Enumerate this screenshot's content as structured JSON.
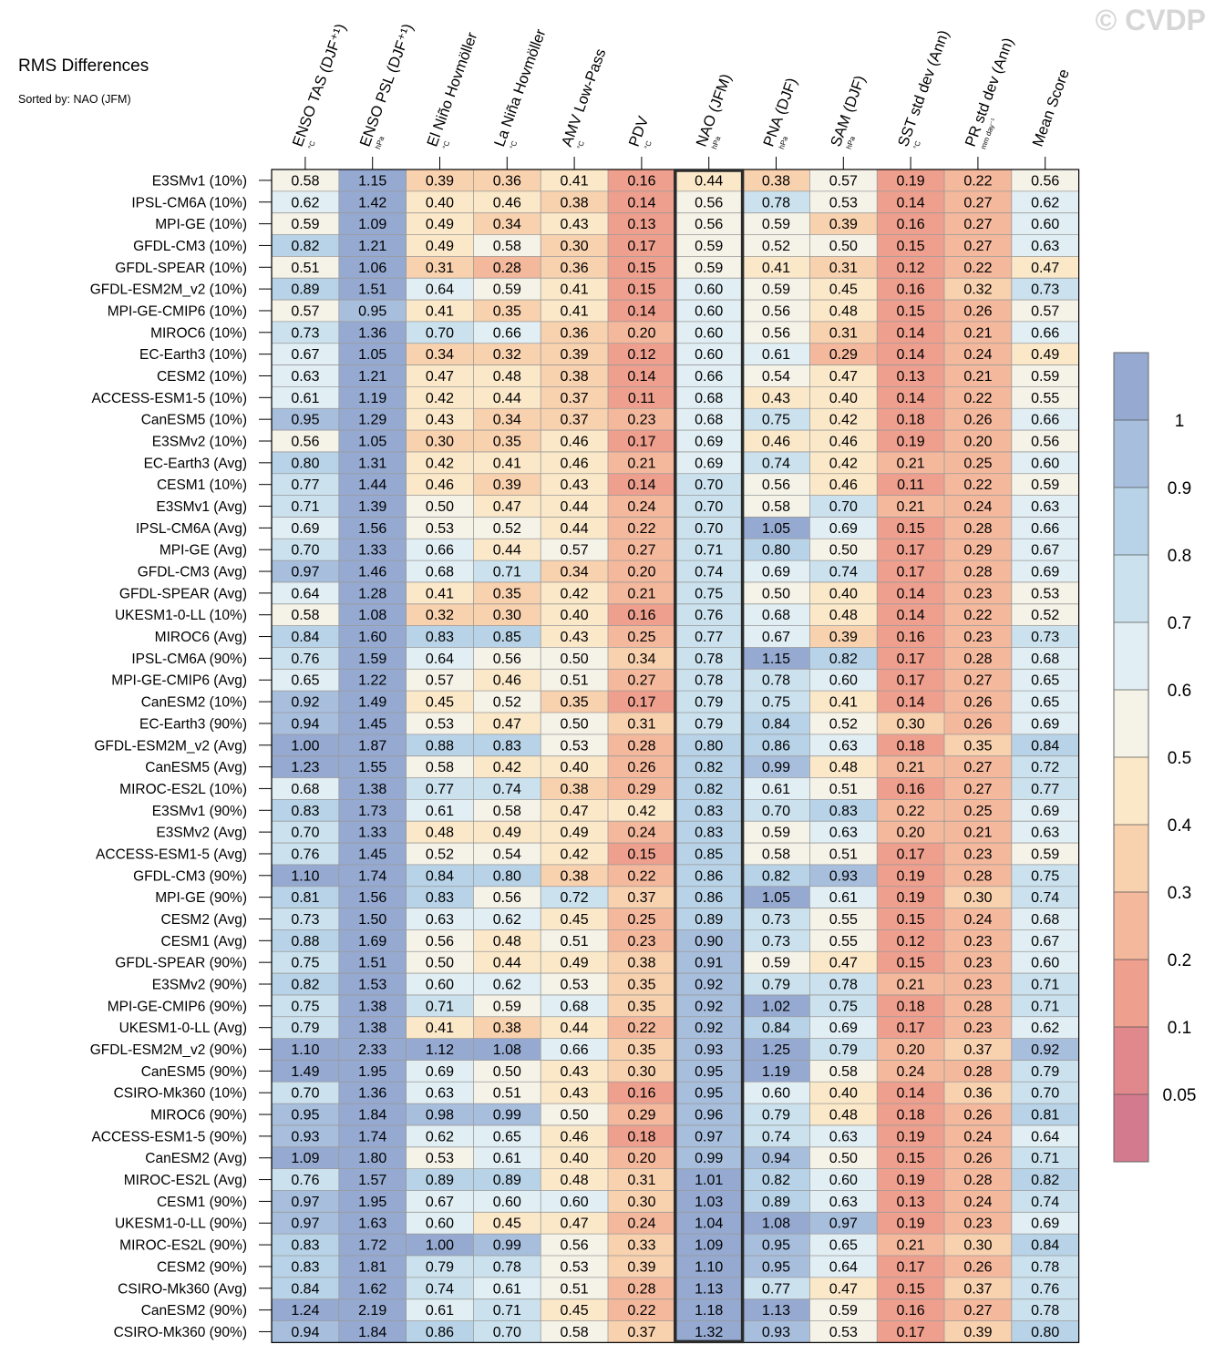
{
  "watermark": "© CVDP",
  "chart_data": {
    "type": "heatmap",
    "title": "RMS Differences",
    "subtitle": "Sorted by: NAO (JFM)",
    "highlighted_column": "NAO (JFM)",
    "columns": [
      {
        "label": "ENSO TAS (DJF⁺¹)",
        "unit": "°C"
      },
      {
        "label": "ENSO PSL (DJF⁺¹)",
        "unit": "hPa"
      },
      {
        "label": "El Niño Hovmöller",
        "unit": "°C"
      },
      {
        "label": "La Niña Hovmöller",
        "unit": "°C"
      },
      {
        "label": "AMV Low-Pass",
        "unit": "°C"
      },
      {
        "label": "PDV",
        "unit": "°C"
      },
      {
        "label": "NAO (JFM)",
        "unit": "hPa"
      },
      {
        "label": "PNA (DJF)",
        "unit": "hPa"
      },
      {
        "label": "SAM (DJF)",
        "unit": "hPa"
      },
      {
        "label": "SST std dev (Ann)",
        "unit": "°C"
      },
      {
        "label": "PR std dev (Ann)",
        "unit": "mm day⁻¹"
      },
      {
        "label": "Mean Score",
        "unit": ""
      }
    ],
    "rows": [
      {
        "label": "E3SMv1 (10%)",
        "values": [
          "0.58",
          "1.15",
          "0.39",
          "0.36",
          "0.41",
          "0.16",
          "0.44",
          "0.38",
          "0.57",
          "0.19",
          "0.22",
          "0.56"
        ]
      },
      {
        "label": "IPSL-CM6A (10%)",
        "values": [
          "0.62",
          "1.42",
          "0.40",
          "0.46",
          "0.38",
          "0.14",
          "0.56",
          "0.78",
          "0.53",
          "0.14",
          "0.27",
          "0.62"
        ]
      },
      {
        "label": "MPI-GE (10%)",
        "values": [
          "0.59",
          "1.09",
          "0.49",
          "0.34",
          "0.43",
          "0.13",
          "0.56",
          "0.59",
          "0.39",
          "0.16",
          "0.27",
          "0.60"
        ]
      },
      {
        "label": "GFDL-CM3 (10%)",
        "values": [
          "0.82",
          "1.21",
          "0.49",
          "0.58",
          "0.30",
          "0.17",
          "0.59",
          "0.52",
          "0.50",
          "0.15",
          "0.27",
          "0.63"
        ]
      },
      {
        "label": "GFDL-SPEAR (10%)",
        "values": [
          "0.51",
          "1.06",
          "0.31",
          "0.28",
          "0.36",
          "0.15",
          "0.59",
          "0.41",
          "0.31",
          "0.12",
          "0.22",
          "0.47"
        ]
      },
      {
        "label": "GFDL-ESM2M_v2 (10%)",
        "values": [
          "0.89",
          "1.51",
          "0.64",
          "0.59",
          "0.41",
          "0.15",
          "0.60",
          "0.59",
          "0.45",
          "0.16",
          "0.32",
          "0.73"
        ]
      },
      {
        "label": "MPI-GE-CMIP6 (10%)",
        "values": [
          "0.57",
          "0.95",
          "0.41",
          "0.35",
          "0.41",
          "0.14",
          "0.60",
          "0.56",
          "0.48",
          "0.15",
          "0.26",
          "0.57"
        ]
      },
      {
        "label": "MIROC6 (10%)",
        "values": [
          "0.73",
          "1.36",
          "0.70",
          "0.66",
          "0.36",
          "0.20",
          "0.60",
          "0.56",
          "0.31",
          "0.14",
          "0.21",
          "0.66"
        ]
      },
      {
        "label": "EC-Earth3 (10%)",
        "values": [
          "0.67",
          "1.05",
          "0.34",
          "0.32",
          "0.39",
          "0.12",
          "0.60",
          "0.61",
          "0.29",
          "0.14",
          "0.24",
          "0.49"
        ]
      },
      {
        "label": "CESM2 (10%)",
        "values": [
          "0.63",
          "1.21",
          "0.47",
          "0.48",
          "0.38",
          "0.14",
          "0.66",
          "0.54",
          "0.47",
          "0.13",
          "0.21",
          "0.59"
        ]
      },
      {
        "label": "ACCESS-ESM1-5 (10%)",
        "values": [
          "0.61",
          "1.19",
          "0.42",
          "0.44",
          "0.37",
          "0.11",
          "0.68",
          "0.43",
          "0.40",
          "0.14",
          "0.22",
          "0.55"
        ]
      },
      {
        "label": "CanESM5 (10%)",
        "values": [
          "0.95",
          "1.29",
          "0.43",
          "0.34",
          "0.37",
          "0.23",
          "0.68",
          "0.75",
          "0.42",
          "0.18",
          "0.26",
          "0.66"
        ]
      },
      {
        "label": "E3SMv2 (10%)",
        "values": [
          "0.56",
          "1.05",
          "0.30",
          "0.35",
          "0.46",
          "0.17",
          "0.69",
          "0.46",
          "0.46",
          "0.19",
          "0.20",
          "0.56"
        ]
      },
      {
        "label": "EC-Earth3 (Avg)",
        "values": [
          "0.80",
          "1.31",
          "0.42",
          "0.41",
          "0.46",
          "0.21",
          "0.69",
          "0.74",
          "0.42",
          "0.21",
          "0.25",
          "0.60"
        ]
      },
      {
        "label": "CESM1 (10%)",
        "values": [
          "0.77",
          "1.44",
          "0.46",
          "0.39",
          "0.43",
          "0.14",
          "0.70",
          "0.56",
          "0.46",
          "0.11",
          "0.22",
          "0.59"
        ]
      },
      {
        "label": "E3SMv1 (Avg)",
        "values": [
          "0.71",
          "1.39",
          "0.50",
          "0.47",
          "0.44",
          "0.24",
          "0.70",
          "0.58",
          "0.70",
          "0.21",
          "0.24",
          "0.63"
        ]
      },
      {
        "label": "IPSL-CM6A (Avg)",
        "values": [
          "0.69",
          "1.56",
          "0.53",
          "0.52",
          "0.44",
          "0.22",
          "0.70",
          "1.05",
          "0.69",
          "0.15",
          "0.28",
          "0.66"
        ]
      },
      {
        "label": "MPI-GE (Avg)",
        "values": [
          "0.70",
          "1.33",
          "0.66",
          "0.44",
          "0.57",
          "0.27",
          "0.71",
          "0.80",
          "0.50",
          "0.17",
          "0.29",
          "0.67"
        ]
      },
      {
        "label": "GFDL-CM3 (Avg)",
        "values": [
          "0.97",
          "1.46",
          "0.68",
          "0.71",
          "0.34",
          "0.20",
          "0.74",
          "0.69",
          "0.74",
          "0.17",
          "0.28",
          "0.69"
        ]
      },
      {
        "label": "GFDL-SPEAR (Avg)",
        "values": [
          "0.64",
          "1.28",
          "0.41",
          "0.35",
          "0.42",
          "0.21",
          "0.75",
          "0.50",
          "0.40",
          "0.14",
          "0.23",
          "0.53"
        ]
      },
      {
        "label": "UKESM1-0-LL (10%)",
        "values": [
          "0.58",
          "1.08",
          "0.32",
          "0.30",
          "0.40",
          "0.16",
          "0.76",
          "0.68",
          "0.48",
          "0.14",
          "0.22",
          "0.52"
        ]
      },
      {
        "label": "MIROC6 (Avg)",
        "values": [
          "0.84",
          "1.60",
          "0.83",
          "0.85",
          "0.43",
          "0.25",
          "0.77",
          "0.67",
          "0.39",
          "0.16",
          "0.23",
          "0.73"
        ]
      },
      {
        "label": "IPSL-CM6A (90%)",
        "values": [
          "0.76",
          "1.59",
          "0.64",
          "0.56",
          "0.50",
          "0.34",
          "0.78",
          "1.15",
          "0.82",
          "0.17",
          "0.28",
          "0.68"
        ]
      },
      {
        "label": "MPI-GE-CMIP6 (Avg)",
        "values": [
          "0.65",
          "1.22",
          "0.57",
          "0.46",
          "0.51",
          "0.27",
          "0.78",
          "0.78",
          "0.60",
          "0.17",
          "0.27",
          "0.65"
        ]
      },
      {
        "label": "CanESM2 (10%)",
        "values": [
          "0.92",
          "1.49",
          "0.45",
          "0.52",
          "0.35",
          "0.17",
          "0.79",
          "0.75",
          "0.41",
          "0.14",
          "0.26",
          "0.65"
        ]
      },
      {
        "label": "EC-Earth3 (90%)",
        "values": [
          "0.94",
          "1.45",
          "0.53",
          "0.47",
          "0.50",
          "0.31",
          "0.79",
          "0.84",
          "0.52",
          "0.30",
          "0.26",
          "0.69"
        ]
      },
      {
        "label": "GFDL-ESM2M_v2 (Avg)",
        "values": [
          "1.00",
          "1.87",
          "0.88",
          "0.83",
          "0.53",
          "0.28",
          "0.80",
          "0.86",
          "0.63",
          "0.18",
          "0.35",
          "0.84"
        ]
      },
      {
        "label": "CanESM5 (Avg)",
        "values": [
          "1.23",
          "1.55",
          "0.58",
          "0.42",
          "0.40",
          "0.26",
          "0.82",
          "0.99",
          "0.48",
          "0.21",
          "0.27",
          "0.72"
        ]
      },
      {
        "label": "MIROC-ES2L (10%)",
        "values": [
          "0.68",
          "1.38",
          "0.77",
          "0.74",
          "0.38",
          "0.29",
          "0.82",
          "0.61",
          "0.51",
          "0.16",
          "0.27",
          "0.77"
        ]
      },
      {
        "label": "E3SMv1 (90%)",
        "values": [
          "0.83",
          "1.73",
          "0.61",
          "0.58",
          "0.47",
          "0.42",
          "0.83",
          "0.70",
          "0.83",
          "0.22",
          "0.25",
          "0.69"
        ]
      },
      {
        "label": "E3SMv2 (Avg)",
        "values": [
          "0.70",
          "1.33",
          "0.48",
          "0.49",
          "0.49",
          "0.24",
          "0.83",
          "0.59",
          "0.63",
          "0.20",
          "0.21",
          "0.63"
        ]
      },
      {
        "label": "ACCESS-ESM1-5 (Avg)",
        "values": [
          "0.76",
          "1.45",
          "0.52",
          "0.54",
          "0.42",
          "0.15",
          "0.85",
          "0.58",
          "0.51",
          "0.17",
          "0.23",
          "0.59"
        ]
      },
      {
        "label": "GFDL-CM3 (90%)",
        "values": [
          "1.10",
          "1.74",
          "0.84",
          "0.80",
          "0.38",
          "0.22",
          "0.86",
          "0.82",
          "0.93",
          "0.19",
          "0.28",
          "0.75"
        ]
      },
      {
        "label": "MPI-GE (90%)",
        "values": [
          "0.81",
          "1.56",
          "0.83",
          "0.56",
          "0.72",
          "0.37",
          "0.86",
          "1.05",
          "0.61",
          "0.19",
          "0.30",
          "0.74"
        ]
      },
      {
        "label": "CESM2 (Avg)",
        "values": [
          "0.73",
          "1.50",
          "0.63",
          "0.62",
          "0.45",
          "0.25",
          "0.89",
          "0.73",
          "0.55",
          "0.15",
          "0.24",
          "0.68"
        ]
      },
      {
        "label": "CESM1 (Avg)",
        "values": [
          "0.88",
          "1.69",
          "0.56",
          "0.48",
          "0.51",
          "0.23",
          "0.90",
          "0.73",
          "0.55",
          "0.12",
          "0.23",
          "0.67"
        ]
      },
      {
        "label": "GFDL-SPEAR (90%)",
        "values": [
          "0.75",
          "1.51",
          "0.50",
          "0.44",
          "0.49",
          "0.38",
          "0.91",
          "0.59",
          "0.47",
          "0.15",
          "0.23",
          "0.60"
        ]
      },
      {
        "label": "E3SMv2 (90%)",
        "values": [
          "0.82",
          "1.53",
          "0.60",
          "0.62",
          "0.53",
          "0.35",
          "0.92",
          "0.79",
          "0.78",
          "0.21",
          "0.23",
          "0.71"
        ]
      },
      {
        "label": "MPI-GE-CMIP6 (90%)",
        "values": [
          "0.75",
          "1.38",
          "0.71",
          "0.59",
          "0.68",
          "0.35",
          "0.92",
          "1.02",
          "0.75",
          "0.18",
          "0.28",
          "0.71"
        ]
      },
      {
        "label": "UKESM1-0-LL (Avg)",
        "values": [
          "0.79",
          "1.38",
          "0.41",
          "0.38",
          "0.44",
          "0.22",
          "0.92",
          "0.84",
          "0.69",
          "0.17",
          "0.23",
          "0.62"
        ]
      },
      {
        "label": "GFDL-ESM2M_v2 (90%)",
        "values": [
          "1.10",
          "2.33",
          "1.12",
          "1.08",
          "0.66",
          "0.35",
          "0.93",
          "1.25",
          "0.79",
          "0.20",
          "0.37",
          "0.92"
        ]
      },
      {
        "label": "CanESM5 (90%)",
        "values": [
          "1.49",
          "1.95",
          "0.69",
          "0.50",
          "0.43",
          "0.30",
          "0.95",
          "1.19",
          "0.58",
          "0.24",
          "0.28",
          "0.79"
        ]
      },
      {
        "label": "CSIRO-Mk360 (10%)",
        "values": [
          "0.70",
          "1.36",
          "0.63",
          "0.51",
          "0.43",
          "0.16",
          "0.95",
          "0.60",
          "0.40",
          "0.14",
          "0.36",
          "0.70"
        ]
      },
      {
        "label": "MIROC6 (90%)",
        "values": [
          "0.95",
          "1.84",
          "0.98",
          "0.99",
          "0.50",
          "0.29",
          "0.96",
          "0.79",
          "0.48",
          "0.18",
          "0.26",
          "0.81"
        ]
      },
      {
        "label": "ACCESS-ESM1-5 (90%)",
        "values": [
          "0.93",
          "1.74",
          "0.62",
          "0.65",
          "0.46",
          "0.18",
          "0.97",
          "0.74",
          "0.63",
          "0.19",
          "0.24",
          "0.64"
        ]
      },
      {
        "label": "CanESM2 (Avg)",
        "values": [
          "1.09",
          "1.80",
          "0.53",
          "0.61",
          "0.40",
          "0.20",
          "0.99",
          "0.94",
          "0.50",
          "0.15",
          "0.26",
          "0.71"
        ]
      },
      {
        "label": "MIROC-ES2L (Avg)",
        "values": [
          "0.76",
          "1.57",
          "0.89",
          "0.89",
          "0.48",
          "0.31",
          "1.01",
          "0.82",
          "0.60",
          "0.19",
          "0.28",
          "0.82"
        ]
      },
      {
        "label": "CESM1 (90%)",
        "values": [
          "0.97",
          "1.95",
          "0.67",
          "0.60",
          "0.60",
          "0.30",
          "1.03",
          "0.89",
          "0.63",
          "0.13",
          "0.24",
          "0.74"
        ]
      },
      {
        "label": "UKESM1-0-LL (90%)",
        "values": [
          "0.97",
          "1.63",
          "0.60",
          "0.45",
          "0.47",
          "0.24",
          "1.04",
          "1.08",
          "0.97",
          "0.19",
          "0.23",
          "0.69"
        ]
      },
      {
        "label": "MIROC-ES2L (90%)",
        "values": [
          "0.83",
          "1.72",
          "1.00",
          "0.99",
          "0.56",
          "0.33",
          "1.09",
          "0.95",
          "0.65",
          "0.21",
          "0.30",
          "0.84"
        ]
      },
      {
        "label": "CESM2 (90%)",
        "values": [
          "0.83",
          "1.81",
          "0.79",
          "0.78",
          "0.53",
          "0.39",
          "1.10",
          "0.95",
          "0.64",
          "0.17",
          "0.26",
          "0.78"
        ]
      },
      {
        "label": "CSIRO-Mk360 (Avg)",
        "values": [
          "0.84",
          "1.62",
          "0.74",
          "0.61",
          "0.51",
          "0.28",
          "1.13",
          "0.77",
          "0.47",
          "0.15",
          "0.37",
          "0.76"
        ]
      },
      {
        "label": "CanESM2 (90%)",
        "values": [
          "1.24",
          "2.19",
          "0.61",
          "0.71",
          "0.45",
          "0.22",
          "1.18",
          "1.13",
          "0.59",
          "0.16",
          "0.27",
          "0.78"
        ]
      },
      {
        "label": "CSIRO-Mk360 (90%)",
        "values": [
          "0.94",
          "1.84",
          "0.86",
          "0.70",
          "0.58",
          "0.37",
          "1.32",
          "0.93",
          "0.53",
          "0.17",
          "0.39",
          "0.80"
        ]
      }
    ],
    "colorbar": {
      "levels": [
        0.05,
        0.1,
        0.2,
        0.3,
        0.4,
        0.5,
        0.6,
        0.7,
        0.8,
        0.9,
        1
      ],
      "labels": [
        "0.05",
        "0.1",
        "0.2",
        "0.3",
        "0.4",
        "0.5",
        "0.6",
        "0.7",
        "0.8",
        "0.9",
        "1"
      ],
      "colors": [
        "#d47a8e",
        "#e1888c",
        "#ee9f8e",
        "#f4b89d",
        "#f8d1ae",
        "#fbe8c8",
        "#f5f3e8",
        "#e1eef3",
        "#cbe2ee",
        "#b8d3e7",
        "#a8bedd",
        "#95a9d1"
      ]
    }
  }
}
